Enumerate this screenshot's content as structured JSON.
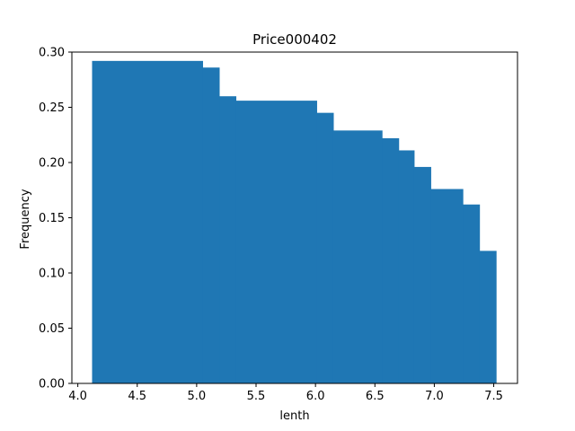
{
  "chart_data": {
    "type": "bar",
    "title": "Price000402",
    "xlabel": "lenth",
    "ylabel": "Frequency",
    "xlim": [
      3.95,
      7.7
    ],
    "ylim": [
      0.0,
      0.3
    ],
    "xticks": [
      "4.0",
      "4.5",
      "5.0",
      "5.5",
      "6.0",
      "6.5",
      "7.0",
      "7.5"
    ],
    "yticks": [
      "0.00",
      "0.05",
      "0.10",
      "0.15",
      "0.20",
      "0.25",
      "0.30"
    ],
    "bar_color": "#1f77b4",
    "bins": [
      {
        "x0": 4.12,
        "x1": 5.05,
        "value": 0.292
      },
      {
        "x0": 5.05,
        "x1": 5.19,
        "value": 0.286
      },
      {
        "x0": 5.19,
        "x1": 5.33,
        "value": 0.26
      },
      {
        "x0": 5.33,
        "x1": 6.01,
        "value": 0.256
      },
      {
        "x0": 6.01,
        "x1": 6.15,
        "value": 0.245
      },
      {
        "x0": 6.15,
        "x1": 6.56,
        "value": 0.229
      },
      {
        "x0": 6.56,
        "x1": 6.7,
        "value": 0.222
      },
      {
        "x0": 6.7,
        "x1": 6.83,
        "value": 0.211
      },
      {
        "x0": 6.83,
        "x1": 6.97,
        "value": 0.196
      },
      {
        "x0": 6.97,
        "x1": 7.24,
        "value": 0.176
      },
      {
        "x0": 7.24,
        "x1": 7.38,
        "value": 0.162
      },
      {
        "x0": 7.38,
        "x1": 7.52,
        "value": 0.12
      }
    ]
  }
}
